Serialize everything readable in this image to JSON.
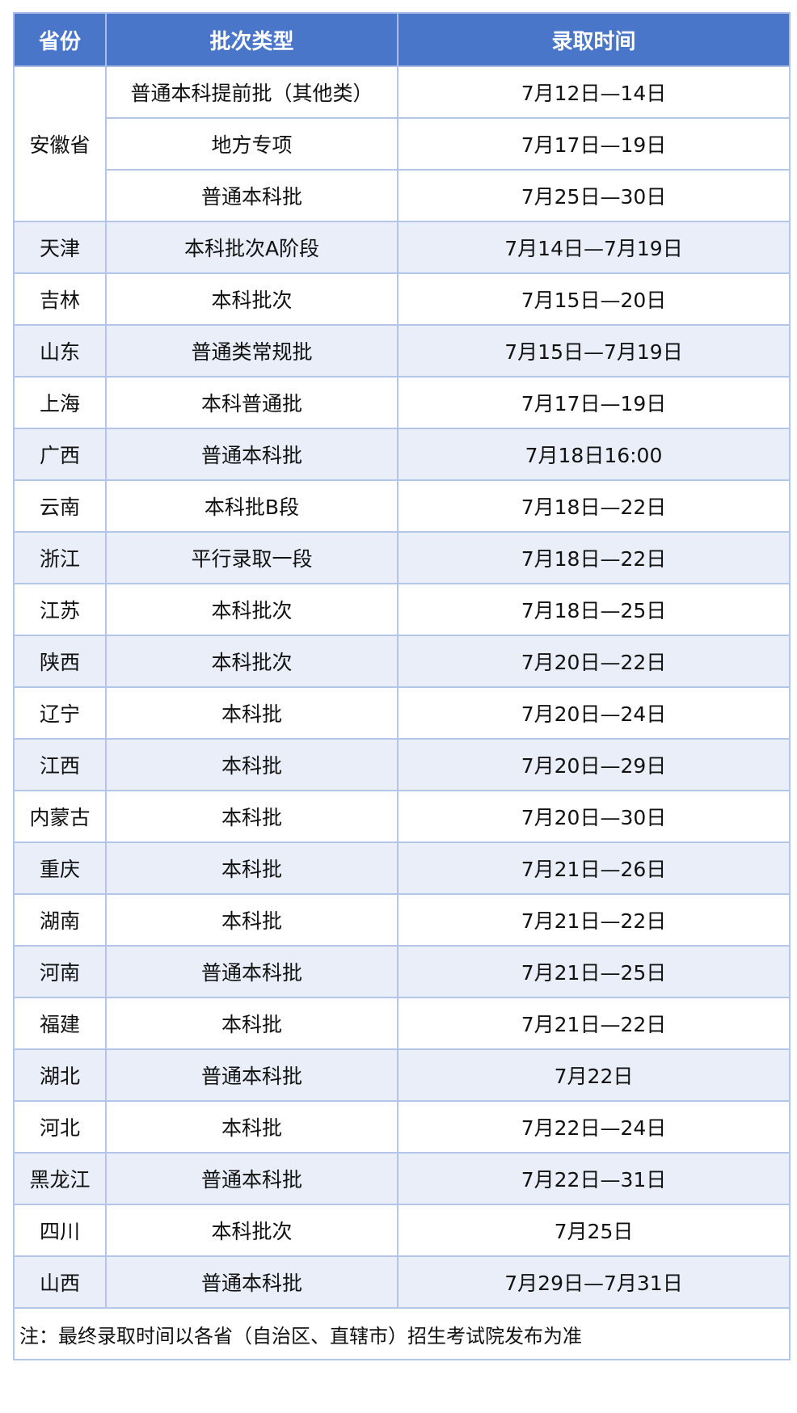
{
  "headers": [
    "省份",
    "批次类型",
    "录取时间"
  ],
  "anhui": {
    "province": "安徽省",
    "rows": [
      {
        "batch": "普通本科提前批（其他类）",
        "time": "7月12日—14日"
      },
      {
        "batch": "地方专项",
        "time": "7月17日—19日"
      },
      {
        "batch": "普通本科批",
        "time": "7月25日—30日"
      }
    ]
  },
  "rows": [
    {
      "province": "天津",
      "batch": "本科批次A阶段",
      "time": "7月14日—7月19日"
    },
    {
      "province": "吉林",
      "batch": "本科批次",
      "time": "7月15日—20日"
    },
    {
      "province": "山东",
      "batch": "普通类常规批",
      "time": "7月15日—7月19日"
    },
    {
      "province": "上海",
      "batch": "本科普通批",
      "time": "7月17日—19日"
    },
    {
      "province": "广西",
      "batch": "普通本科批",
      "time": "7月18日16:00"
    },
    {
      "province": "云南",
      "batch": "本科批B段",
      "time": "7月18日—22日"
    },
    {
      "province": "浙江",
      "batch": "平行录取一段",
      "time": "7月18日—22日"
    },
    {
      "province": "江苏",
      "batch": "本科批次",
      "time": "7月18日—25日"
    },
    {
      "province": "陕西",
      "batch": "本科批次",
      "time": "7月20日—22日"
    },
    {
      "province": "辽宁",
      "batch": "本科批",
      "time": "7月20日—24日"
    },
    {
      "province": "江西",
      "batch": "本科批",
      "time": "7月20日—29日"
    },
    {
      "province": "内蒙古",
      "batch": "本科批",
      "time": "7月20日—30日"
    },
    {
      "province": "重庆",
      "batch": "本科批",
      "time": "7月21日—26日"
    },
    {
      "province": "湖南",
      "batch": "本科批",
      "time": "7月21日—22日"
    },
    {
      "province": "河南",
      "batch": "普通本科批",
      "time": "7月21日—25日"
    },
    {
      "province": "福建",
      "batch": "本科批",
      "time": "7月21日—22日"
    },
    {
      "province": "湖北",
      "batch": "普通本科批",
      "time": "7月22日"
    },
    {
      "province": "河北",
      "batch": "本科批",
      "time": "7月22日—24日"
    },
    {
      "province": "黑龙江",
      "batch": "普通本科批",
      "time": "7月22日—31日"
    },
    {
      "province": "四川",
      "batch": "本科批次",
      "time": "7月25日"
    },
    {
      "province": "山西",
      "batch": "普通本科批",
      "time": "7月29日—7月31日"
    }
  ],
  "note": "注：最终录取时间以各省（自治区、直辖市）招生考试院发布为准",
  "colors": {
    "header_bg": "#4a76c9",
    "border": "#b4c6e7",
    "alt_row": "#e9eef8",
    "outer_border": "#4472c4"
  }
}
